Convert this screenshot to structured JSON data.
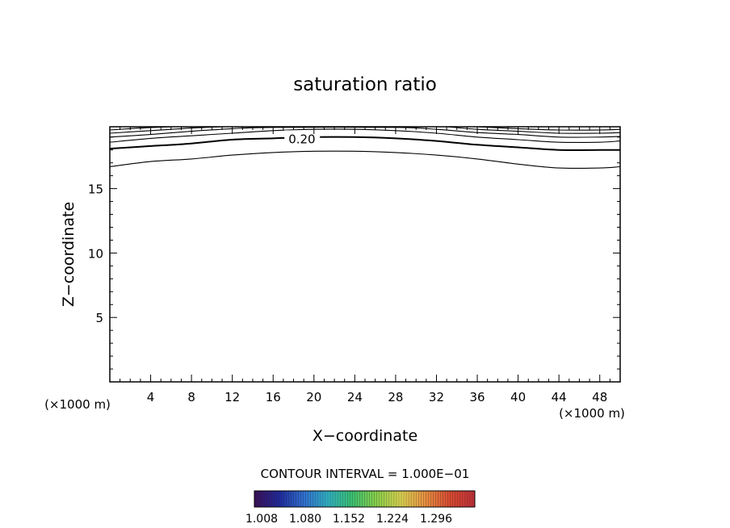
{
  "chart_data": {
    "type": "contour",
    "title": "saturation ratio",
    "xlabel": "X−coordinate",
    "ylabel": "Z−coordinate",
    "x_unit_left": "(×1000 m)",
    "x_unit_right": "(×1000 m)",
    "xlim": [
      0,
      50
    ],
    "ylim": [
      0,
      19.8
    ],
    "x_ticks": [
      4,
      8,
      12,
      16,
      20,
      24,
      28,
      32,
      36,
      40,
      44,
      48
    ],
    "y_ticks": [
      5,
      10,
      15
    ],
    "contour_interval_text": "CONTOUR INTERVAL = 1.000E−01",
    "contour_label": "0.20",
    "contours": [
      {
        "value": "",
        "bold": false,
        "points": [
          [
            0,
            16.7
          ],
          [
            4,
            17.1
          ],
          [
            8,
            17.3
          ],
          [
            12,
            17.6
          ],
          [
            16,
            17.8
          ],
          [
            20,
            17.9
          ],
          [
            24,
            17.9
          ],
          [
            28,
            17.8
          ],
          [
            32,
            17.6
          ],
          [
            36,
            17.3
          ],
          [
            40,
            16.9
          ],
          [
            44,
            16.6
          ],
          [
            48,
            16.6
          ],
          [
            50,
            16.7
          ]
        ]
      },
      {
        "value": "0.20",
        "bold": true,
        "points": [
          [
            0,
            18.1
          ],
          [
            4,
            18.3
          ],
          [
            8,
            18.5
          ],
          [
            12,
            18.8
          ],
          [
            16,
            18.9
          ],
          [
            20,
            19.0
          ],
          [
            24,
            19.0
          ],
          [
            28,
            18.9
          ],
          [
            32,
            18.7
          ],
          [
            36,
            18.4
          ],
          [
            40,
            18.2
          ],
          [
            44,
            18.0
          ],
          [
            48,
            18.0
          ],
          [
            50,
            18.0
          ]
        ]
      },
      {
        "value": "",
        "bold": false,
        "points": [
          [
            0,
            18.6
          ],
          [
            4,
            18.9
          ],
          [
            8,
            19.1
          ],
          [
            12,
            19.3
          ],
          [
            16,
            19.5
          ],
          [
            20,
            19.6
          ],
          [
            24,
            19.6
          ],
          [
            28,
            19.5
          ],
          [
            32,
            19.3
          ],
          [
            36,
            19.0
          ],
          [
            40,
            18.8
          ],
          [
            44,
            18.6
          ],
          [
            48,
            18.6
          ],
          [
            50,
            18.7
          ]
        ]
      },
      {
        "value": "",
        "bold": false,
        "points": [
          [
            0,
            19.0
          ],
          [
            4,
            19.2
          ],
          [
            8,
            19.45
          ],
          [
            12,
            19.65
          ],
          [
            16,
            19.75
          ],
          [
            28,
            19.75
          ],
          [
            32,
            19.6
          ],
          [
            36,
            19.35
          ],
          [
            40,
            19.2
          ],
          [
            44,
            19.0
          ],
          [
            48,
            19.0
          ],
          [
            50,
            19.05
          ]
        ]
      },
      {
        "value": "",
        "bold": false,
        "points": [
          [
            0,
            19.3
          ],
          [
            4,
            19.5
          ],
          [
            8,
            19.7
          ],
          [
            11,
            19.8
          ]
        ]
      },
      {
        "value": "",
        "bold": false,
        "points": [
          [
            33,
            19.8
          ],
          [
            36,
            19.6
          ],
          [
            40,
            19.45
          ],
          [
            44,
            19.3
          ],
          [
            48,
            19.3
          ],
          [
            50,
            19.35
          ]
        ]
      },
      {
        "value": "",
        "bold": false,
        "points": [
          [
            0,
            19.55
          ],
          [
            3,
            19.7
          ],
          [
            6,
            19.8
          ]
        ]
      },
      {
        "value": "",
        "bold": false,
        "points": [
          [
            36,
            19.8
          ],
          [
            40,
            19.65
          ],
          [
            44,
            19.55
          ],
          [
            48,
            19.55
          ],
          [
            50,
            19.6
          ]
        ]
      }
    ],
    "colorbar": {
      "tick_labels": [
        "1.008",
        "1.080",
        "1.152",
        "1.224",
        "1.296"
      ],
      "colors": [
        "#3a0f5a",
        "#1f2a9c",
        "#2f6fd0",
        "#2fb0c0",
        "#3ac070",
        "#8ad04a",
        "#d8d050",
        "#e89040",
        "#d84a30",
        "#c03038"
      ]
    }
  }
}
